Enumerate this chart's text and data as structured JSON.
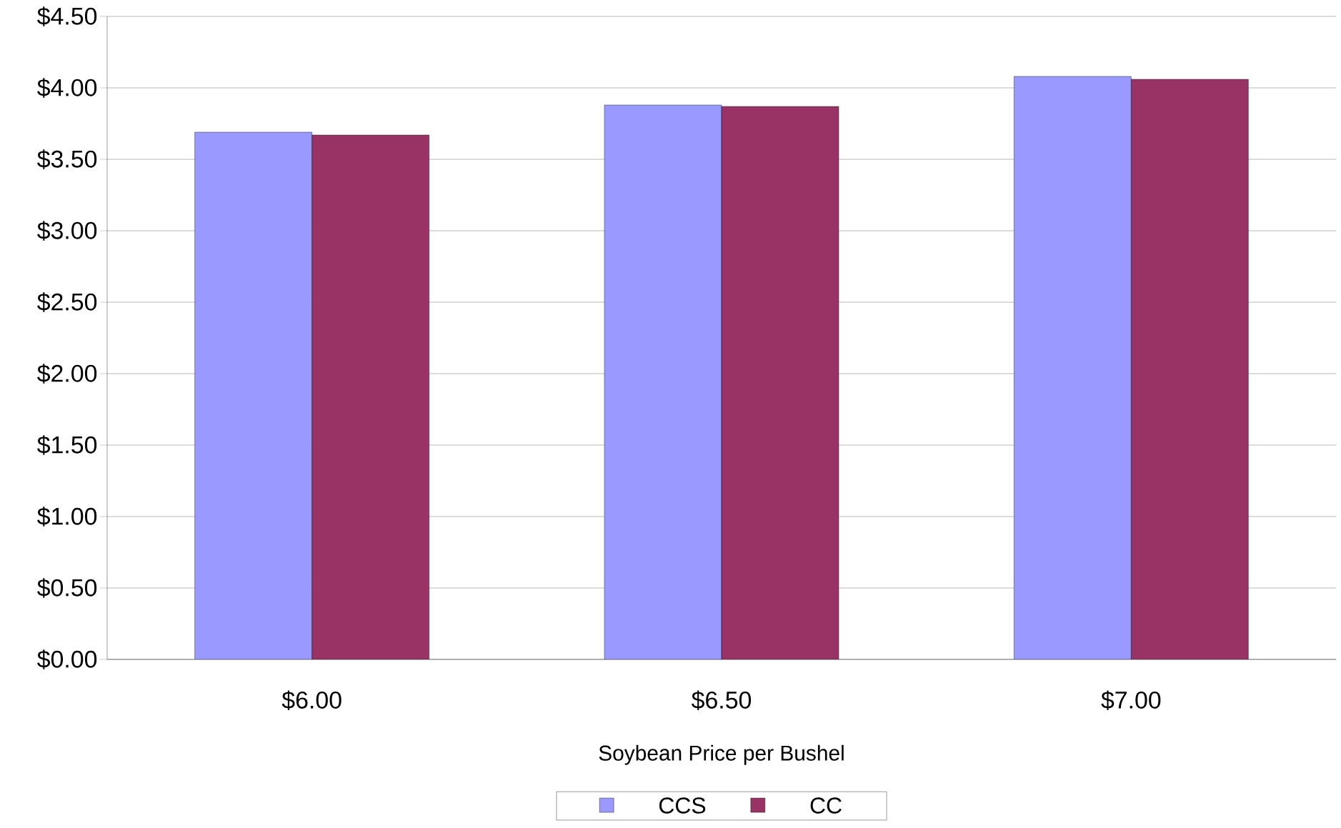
{
  "chart_data": {
    "type": "bar",
    "xlabel": "Soybean Price per Bushel",
    "categories": [
      "$6.00",
      "$6.50",
      "$7.00"
    ],
    "series": [
      {
        "name": "CCS",
        "color": "#9999ff",
        "values": [
          3.69,
          3.88,
          4.08
        ]
      },
      {
        "name": "CC",
        "color": "#993366",
        "values": [
          3.67,
          3.87,
          4.06
        ]
      }
    ],
    "ylim": [
      0,
      4.5
    ],
    "yticks": [
      {
        "value": 0,
        "label": "$0.00"
      },
      {
        "value": 0.5,
        "label": "$0.50"
      },
      {
        "value": 1,
        "label": "$1.00"
      },
      {
        "value": 1.5,
        "label": "$1.50"
      },
      {
        "value": 2,
        "label": "$2.00"
      },
      {
        "value": 2.5,
        "label": "$2.50"
      },
      {
        "value": 3,
        "label": "$3.00"
      },
      {
        "value": 3.5,
        "label": "$3.50"
      },
      {
        "value": 4,
        "label": "$4.00"
      },
      {
        "value": 4.5,
        "label": "$4.50"
      }
    ],
    "grid": "y",
    "legend": "bottom"
  }
}
